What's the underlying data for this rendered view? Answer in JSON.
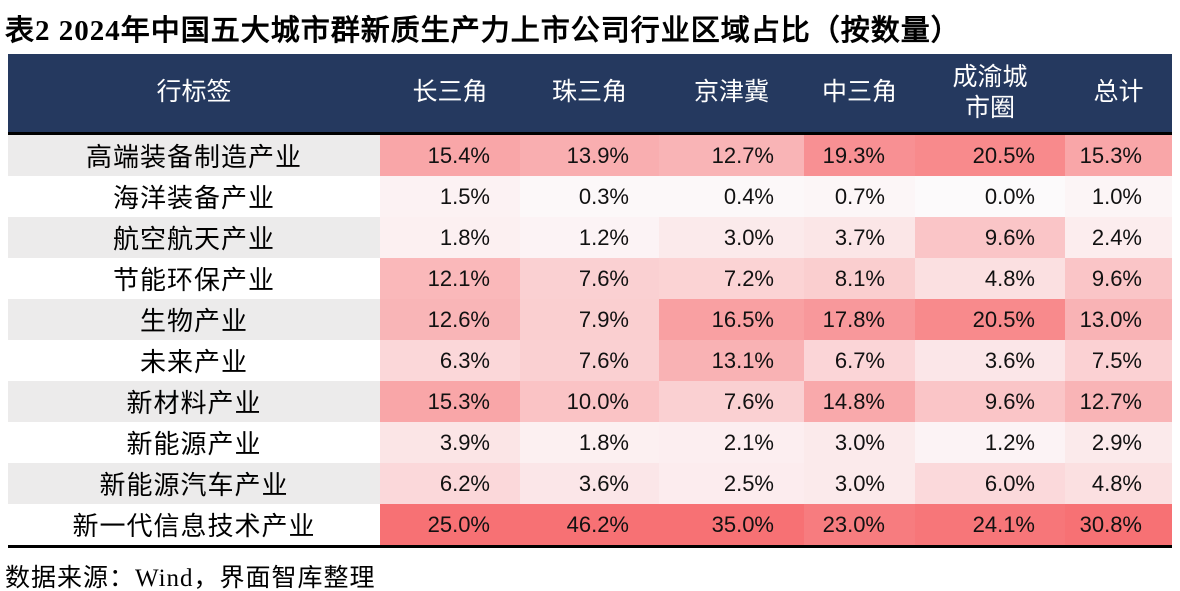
{
  "title": "表2 2024年中国五大城市群新质生产力上市公司行业区域占比（按数量）",
  "source": "数据来源：Wind，界面智库整理",
  "colors": {
    "header_bg": "#25395F",
    "header_text": "#FFFFFF",
    "row_alt_bg": "#ECEBEB",
    "divider": "#000000",
    "heat_min": "#FCFAFB",
    "heat_max": "#F77174"
  },
  "chart_data": {
    "type": "table",
    "title": "表2 2024年中国五大城市群新质生产力上市公司行业区域占比（按数量）",
    "columns": [
      "行标签",
      "长三角",
      "珠三角",
      "京津冀",
      "中三角",
      "成渝城\n市圈",
      "总计"
    ],
    "value_format": "percent_one_decimal",
    "heatmap": {
      "min_color": "#FCFAFB",
      "max_color": "#F77174",
      "cap": 25
    },
    "rows": [
      {
        "label": "高端装备制造产业",
        "values": [
          15.4,
          13.9,
          12.7,
          19.3,
          20.5,
          15.3
        ]
      },
      {
        "label": "海洋装备产业",
        "values": [
          1.5,
          0.3,
          0.4,
          0.7,
          0.0,
          1.0
        ]
      },
      {
        "label": "航空航天产业",
        "values": [
          1.8,
          1.2,
          3.0,
          3.7,
          9.6,
          2.4
        ]
      },
      {
        "label": "节能环保产业",
        "values": [
          12.1,
          7.6,
          7.2,
          8.1,
          4.8,
          9.6
        ]
      },
      {
        "label": "生物产业",
        "values": [
          12.6,
          7.9,
          16.5,
          17.8,
          20.5,
          13.0
        ]
      },
      {
        "label": "未来产业",
        "values": [
          6.3,
          7.6,
          13.1,
          6.7,
          3.6,
          7.5
        ]
      },
      {
        "label": "新材料产业",
        "values": [
          15.3,
          10.0,
          7.6,
          14.8,
          9.6,
          12.7
        ]
      },
      {
        "label": "新能源产业",
        "values": [
          3.9,
          1.8,
          2.1,
          3.0,
          1.2,
          2.9
        ]
      },
      {
        "label": "新能源汽车产业",
        "values": [
          6.2,
          3.6,
          2.5,
          3.0,
          6.0,
          4.8
        ]
      },
      {
        "label": "新一代信息技术产业",
        "values": [
          25.0,
          46.2,
          35.0,
          23.0,
          24.1,
          30.8
        ]
      }
    ]
  }
}
